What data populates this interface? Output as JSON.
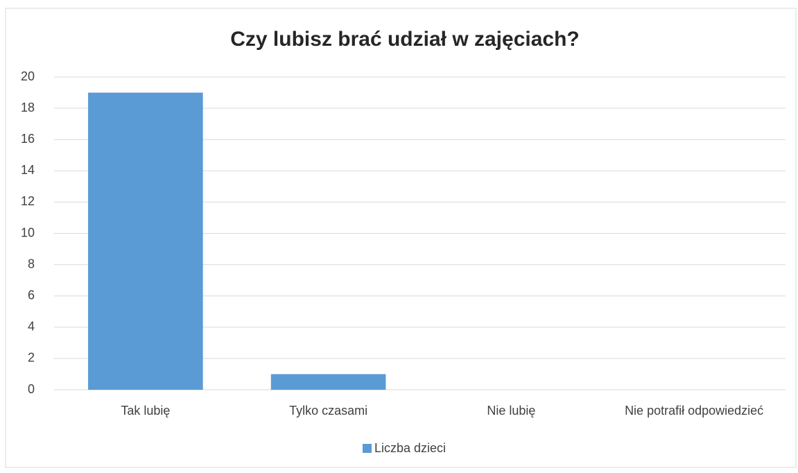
{
  "chart_data": {
    "type": "bar",
    "title": "Czy lubisz brać udział w zajęciach?",
    "categories": [
      "Tak lubię",
      "Tylko czasami",
      "Nie lubię",
      "Nie potrafił odpowiedzieć"
    ],
    "series": [
      {
        "name": "Liczba dzieci",
        "color": "#5b9bd5",
        "values": [
          19,
          1,
          0,
          0
        ]
      }
    ],
    "ylim": [
      0,
      20
    ],
    "yticks": [
      0,
      2,
      4,
      6,
      8,
      10,
      12,
      14,
      16,
      18,
      20
    ],
    "grid": true,
    "legend": "bottom"
  }
}
